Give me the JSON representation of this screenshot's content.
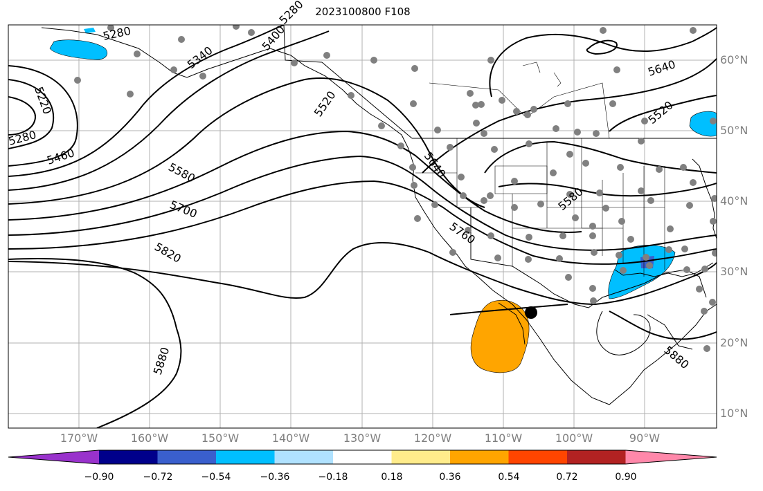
{
  "title": "2023100800 F108",
  "lat_labels": [
    "60°N",
    "50°N",
    "40°N",
    "30°N",
    "20°N",
    "10°N"
  ],
  "lon_labels": [
    "170°W",
    "160°W",
    "150°W",
    "140°W",
    "130°W",
    "120°W",
    "110°W",
    "100°W",
    "90°W"
  ],
  "contour_labels": [
    "5280",
    "5280",
    "5220",
    "5280",
    "5340",
    "5400",
    "5460",
    "5520",
    "5580",
    "5700",
    "5820",
    "5880",
    "5640",
    "5760",
    "5580",
    "5640",
    "5520",
    "5880"
  ],
  "colorbar": {
    "ticks": [
      "−0.90",
      "−0.72",
      "−0.54",
      "−0.36",
      "−0.18",
      "0.18",
      "0.36",
      "0.54",
      "0.72",
      "0.90"
    ],
    "colors": [
      "#9932cc",
      "#00008b",
      "#3a5fcd",
      "#00bfff",
      "#b0e2ff",
      "#ffffff",
      "#ffec8b",
      "#ffa500",
      "#ff4500",
      "#b22222",
      "#ff88aa"
    ]
  },
  "shading_colors": {
    "positive": "#ffa500",
    "negative": "#00bfff",
    "negative_strong": "#3a5fcd"
  },
  "station_color": "#808080"
}
